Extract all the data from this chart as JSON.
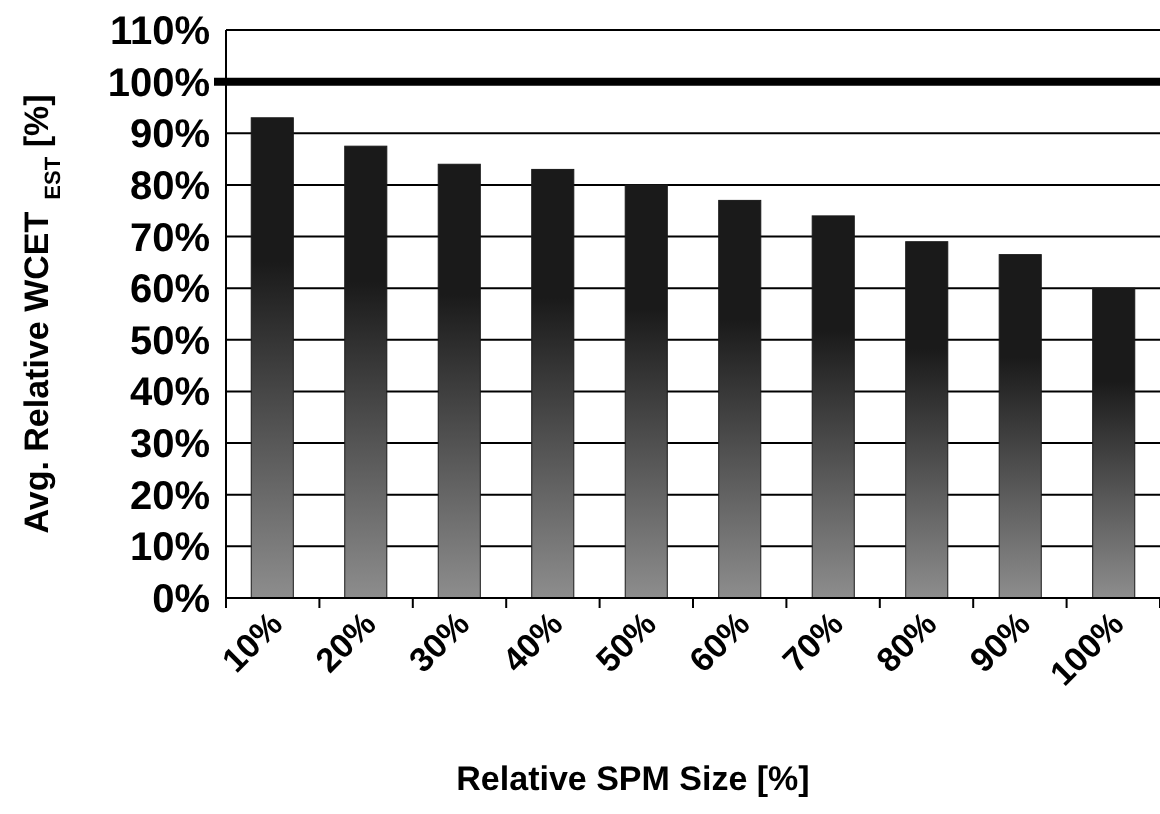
{
  "chart_data": {
    "type": "bar",
    "xlabel": "Relative SPM Size [%]",
    "ylabel": "Avg. Relative WCET$_{EST}$ [%]",
    "categories": [
      "10%",
      "20%",
      "30%",
      "40%",
      "50%",
      "60%",
      "70%",
      "80%",
      "90%",
      "100%"
    ],
    "values": [
      93,
      87.5,
      84,
      83,
      80,
      77,
      74,
      69,
      66.5,
      60
    ],
    "color": "#1a1a1a",
    "ylim": [
      0,
      110
    ],
    "yticks": [
      {
        "value": 0,
        "label": "0%"
      },
      {
        "value": 10,
        "label": "10%"
      },
      {
        "value": 20,
        "label": "20%"
      },
      {
        "value": 30,
        "label": "30%"
      },
      {
        "value": 40,
        "label": "40%"
      },
      {
        "value": 50,
        "label": "50%"
      },
      {
        "value": 60,
        "label": "60%"
      },
      {
        "value": 70,
        "label": "70%"
      },
      {
        "value": 80,
        "label": "80%"
      },
      {
        "value": 90,
        "label": "90%"
      },
      {
        "value": 100,
        "label": "100%"
      },
      {
        "value": 110,
        "label": "110%"
      }
    ],
    "grid": "y",
    "ref_lines": [
      {
        "axis": "y",
        "value": 100,
        "color": "#000000"
      }
    ]
  }
}
